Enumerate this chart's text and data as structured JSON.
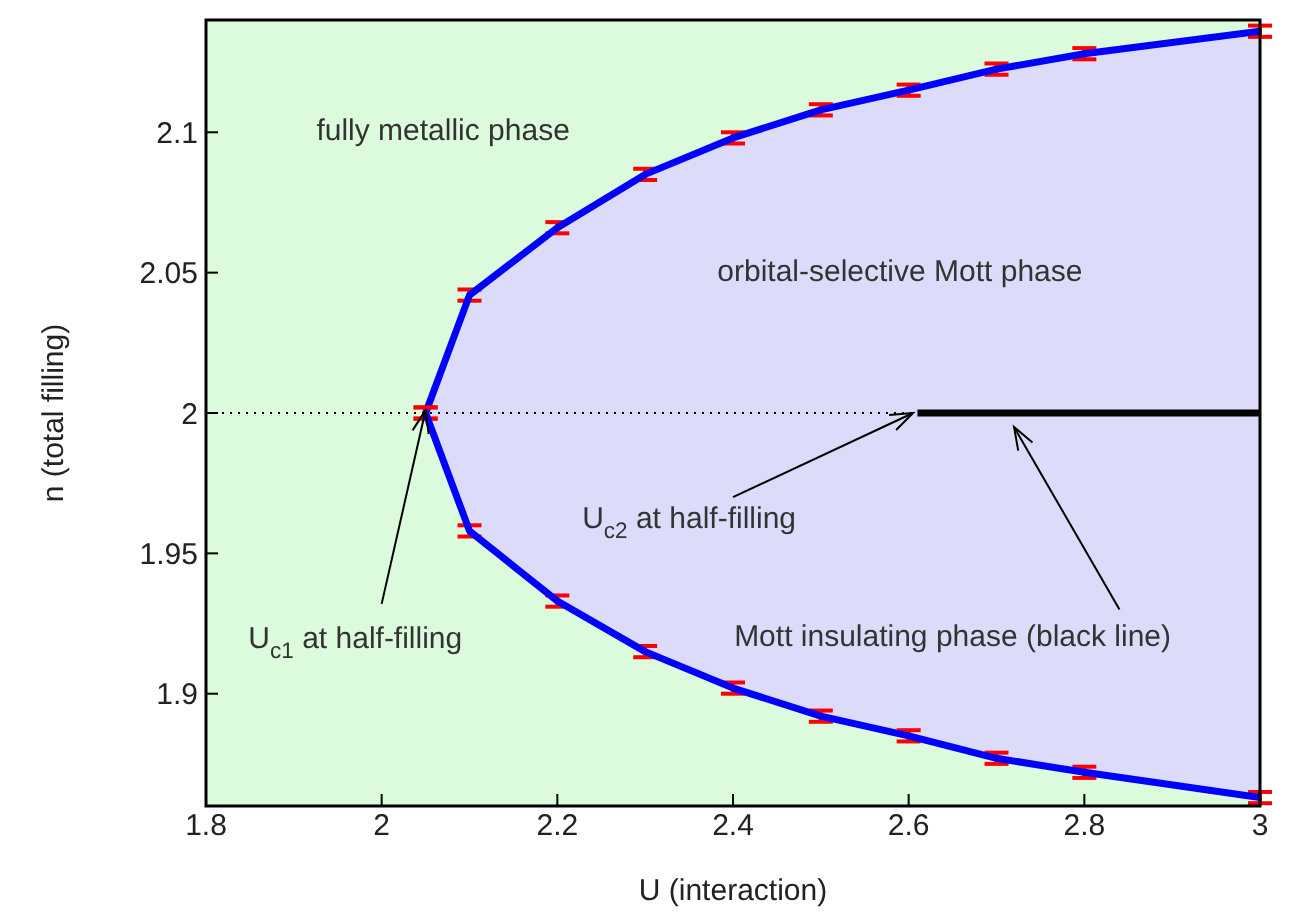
{
  "chart_data": {
    "type": "line",
    "xlabel": "U (interaction)",
    "ylabel": "n (total filling)",
    "xlim": [
      1.8,
      3
    ],
    "xticks": [
      1.8,
      2,
      2.2,
      2.4,
      2.6,
      2.8,
      3
    ],
    "ylim": [
      1.86,
      2.14
    ],
    "yticks": [
      1.9,
      1.95,
      2,
      2.05,
      2.1
    ],
    "marker": "none",
    "bands": [
      {
        "axis": "x",
        "from": 1.8,
        "to": 3,
        "color": "#dcfadc"
      }
    ],
    "series": [
      {
        "color": "#000000",
        "line_style": "dotted",
        "x": [
          1.8,
          2.61
        ],
        "values": [
          2.0,
          2.0
        ]
      },
      {
        "color": "#000000",
        "x": [
          2.61,
          3
        ],
        "values": [
          2.0,
          2.0
        ]
      },
      {
        "color": "#0000ff",
        "x": [
          2.05,
          2.1,
          2.2,
          2.3,
          2.4,
          2.5,
          2.6,
          2.7,
          2.8,
          3
        ],
        "values": [
          2.0,
          2.042,
          2.066,
          2.085,
          2.098,
          2.108,
          2.115,
          2.1225,
          2.128,
          2.136
        ],
        "errors": [
          0.002,
          0.002,
          0.002,
          0.002,
          0.002,
          0.002,
          0.002,
          0.002,
          0.002,
          0.002
        ],
        "lower": [
          2.0,
          1.958,
          1.933,
          1.915,
          1.902,
          1.892,
          1.885,
          1.877,
          1.872,
          1.863
        ],
        "upper": [
          2.0,
          2.042,
          2.066,
          2.085,
          2.098,
          2.108,
          2.115,
          2.1225,
          2.128,
          2.136
        ]
      },
      {
        "color": "#0000ff",
        "x": [
          2.05,
          2.1,
          2.2,
          2.3,
          2.4,
          2.5,
          2.6,
          2.7,
          2.8,
          3
        ],
        "values": [
          2.0,
          1.958,
          1.933,
          1.915,
          1.902,
          1.892,
          1.885,
          1.877,
          1.872,
          1.863
        ],
        "errors": [
          0.002,
          0.002,
          0.002,
          0.002,
          0.002,
          0.002,
          0.002,
          0.002,
          0.002,
          0.002
        ]
      }
    ],
    "annotations": [
      "fully metallic phase",
      "orbital-selective Mott phase",
      {
        "text": "U$_{c1}$ at half-filling",
        "x": 2.05,
        "y": 2.0
      },
      {
        "text": "U$_{c2}$ at half-filling",
        "x": 2.61,
        "y": 2.0
      },
      "Mott insulating phase (black line)"
    ]
  }
}
